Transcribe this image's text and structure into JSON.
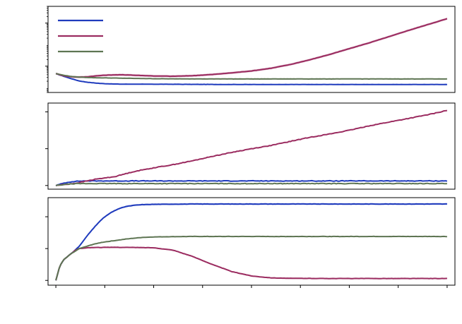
{
  "chart_data": [
    {
      "type": "line",
      "title": "",
      "xlabel": "",
      "ylabel": "",
      "yscale": "log",
      "grid": false,
      "legend": "top-left",
      "xlim": [
        -0.02,
        1.02
      ],
      "ylim": [
        0.6,
        6000
      ],
      "x_ticks": [
        0,
        0.125,
        0.25,
        0.375,
        0.5,
        0.625,
        0.75,
        0.875,
        1.0
      ],
      "y_major_ticks": [
        10,
        1000
      ],
      "series": [
        {
          "color": "#1f3bbd",
          "x": [
            0,
            0.02,
            0.04,
            0.06,
            0.08,
            0.1,
            0.12,
            0.14,
            0.16,
            0.18,
            0.2,
            0.25,
            0.3,
            0.35,
            0.4,
            0.5,
            0.6,
            0.7,
            0.8,
            0.9,
            1.0
          ],
          "y": [
            4.5,
            3.4,
            2.6,
            2.05,
            1.8,
            1.65,
            1.55,
            1.5,
            1.47,
            1.46,
            1.46,
            1.45,
            1.44,
            1.43,
            1.42,
            1.41,
            1.41,
            1.41,
            1.41,
            1.41,
            1.41
          ],
          "band": 0.02
        },
        {
          "color": "#9b2c60",
          "x": [
            0,
            0.02,
            0.04,
            0.06,
            0.08,
            0.1,
            0.12,
            0.15,
            0.18,
            0.2,
            0.25,
            0.3,
            0.35,
            0.4,
            0.45,
            0.5,
            0.55,
            0.6,
            0.65,
            0.7,
            0.75,
            0.8,
            0.85,
            0.9,
            0.95,
            1.0
          ],
          "y": [
            4.5,
            3.6,
            3.2,
            3.1,
            3.2,
            3.5,
            3.75,
            3.95,
            3.95,
            3.8,
            3.5,
            3.4,
            3.6,
            4.1,
            4.9,
            6.0,
            8.0,
            12,
            20,
            35,
            65,
            120,
            230,
            450,
            850,
            1600
          ],
          "band": 0.12
        },
        {
          "color": "#5e7553",
          "x": [
            0,
            0.02,
            0.04,
            0.06,
            0.08,
            0.1,
            0.15,
            0.2,
            0.25,
            0.3,
            0.4,
            0.5,
            0.6,
            0.7,
            0.8,
            0.9,
            1.0
          ],
          "y": [
            4.5,
            3.8,
            3.3,
            3.1,
            3.0,
            2.9,
            2.8,
            2.7,
            2.62,
            2.58,
            2.55,
            2.55,
            2.55,
            2.55,
            2.55,
            2.55,
            2.55
          ],
          "band": 0.01
        }
      ]
    },
    {
      "type": "line",
      "title": "",
      "xlabel": "",
      "ylabel": "",
      "grid": false,
      "xlim": [
        -0.02,
        1.02
      ],
      "ylim": [
        -0.25,
        5.6
      ],
      "x_ticks": [
        0,
        0.125,
        0.25,
        0.375,
        0.5,
        0.625,
        0.75,
        0.875,
        1.0
      ],
      "y_ticks": [
        0,
        2.5,
        5
      ],
      "series": [
        {
          "color": "#1f3bbd",
          "x": [
            0,
            0.02,
            0.04,
            0.06,
            0.08,
            1.0
          ],
          "y": [
            0,
            0.16,
            0.26,
            0.3,
            0.31,
            0.31
          ]
        },
        {
          "color": "#9b2c60",
          "x": [
            0,
            0.05,
            0.1,
            0.15,
            0.2,
            0.25,
            0.3,
            0.35,
            0.4,
            0.45,
            0.5,
            0.55,
            0.6,
            0.65,
            0.7,
            0.75,
            0.8,
            0.85,
            0.9,
            0.95,
            1.0
          ],
          "y": [
            0,
            0.15,
            0.42,
            0.6,
            0.95,
            1.2,
            1.42,
            1.68,
            1.98,
            2.25,
            2.5,
            2.72,
            3.0,
            3.28,
            3.5,
            3.75,
            4.05,
            4.3,
            4.55,
            4.8,
            5.1
          ]
        },
        {
          "color": "#5e7553",
          "x": [
            0,
            0.02,
            0.04,
            0.06,
            1.0
          ],
          "y": [
            0,
            0.06,
            0.11,
            0.13,
            0.13
          ]
        }
      ]
    },
    {
      "type": "line",
      "title": "",
      "xlabel": "",
      "ylabel": "",
      "grid": false,
      "xlim": [
        -0.02,
        1.02
      ],
      "ylim": [
        -0.03,
        0.52
      ],
      "x_ticks": [
        0,
        0.125,
        0.25,
        0.375,
        0.5,
        0.625,
        0.75,
        0.875,
        1.0
      ],
      "y_ticks": [
        0,
        0.2,
        0.4
      ],
      "series": [
        {
          "color": "#1f3bbd",
          "x": [
            0,
            0.01,
            0.02,
            0.03,
            0.04,
            0.06,
            0.08,
            0.1,
            0.12,
            0.14,
            0.16,
            0.18,
            0.2,
            0.22,
            0.25,
            0.3,
            0.35,
            0.4,
            0.5,
            0.6,
            0.7,
            0.8,
            0.9,
            1.0
          ],
          "y": [
            0,
            0.09,
            0.13,
            0.15,
            0.17,
            0.215,
            0.28,
            0.34,
            0.39,
            0.425,
            0.45,
            0.465,
            0.472,
            0.476,
            0.478,
            0.479,
            0.48,
            0.48,
            0.48,
            0.48,
            0.48,
            0.48,
            0.48,
            0.48
          ],
          "band": 0.005
        },
        {
          "color": "#9b2c60",
          "x": [
            0,
            0.01,
            0.02,
            0.03,
            0.04,
            0.05,
            0.06,
            0.08,
            0.1,
            0.15,
            0.2,
            0.25,
            0.3,
            0.35,
            0.4,
            0.45,
            0.5,
            0.55,
            0.6,
            0.7,
            0.8,
            0.9,
            1.0
          ],
          "y": [
            0,
            0.09,
            0.13,
            0.15,
            0.17,
            0.19,
            0.2,
            0.205,
            0.207,
            0.208,
            0.207,
            0.205,
            0.19,
            0.15,
            0.1,
            0.055,
            0.028,
            0.016,
            0.013,
            0.012,
            0.012,
            0.012,
            0.012
          ],
          "band": 0.004
        },
        {
          "color": "#5e7553",
          "x": [
            0,
            0.01,
            0.02,
            0.03,
            0.04,
            0.06,
            0.08,
            0.1,
            0.12,
            0.15,
            0.18,
            0.2,
            0.22,
            0.25,
            0.3,
            0.35,
            0.4,
            0.5,
            0.6,
            0.7,
            0.8,
            0.9,
            1.0
          ],
          "y": [
            0,
            0.09,
            0.13,
            0.15,
            0.17,
            0.2,
            0.215,
            0.23,
            0.24,
            0.25,
            0.26,
            0.265,
            0.27,
            0.273,
            0.275,
            0.276,
            0.276,
            0.276,
            0.276,
            0.276,
            0.276,
            0.276,
            0.276
          ],
          "band": 0.003
        }
      ]
    }
  ]
}
